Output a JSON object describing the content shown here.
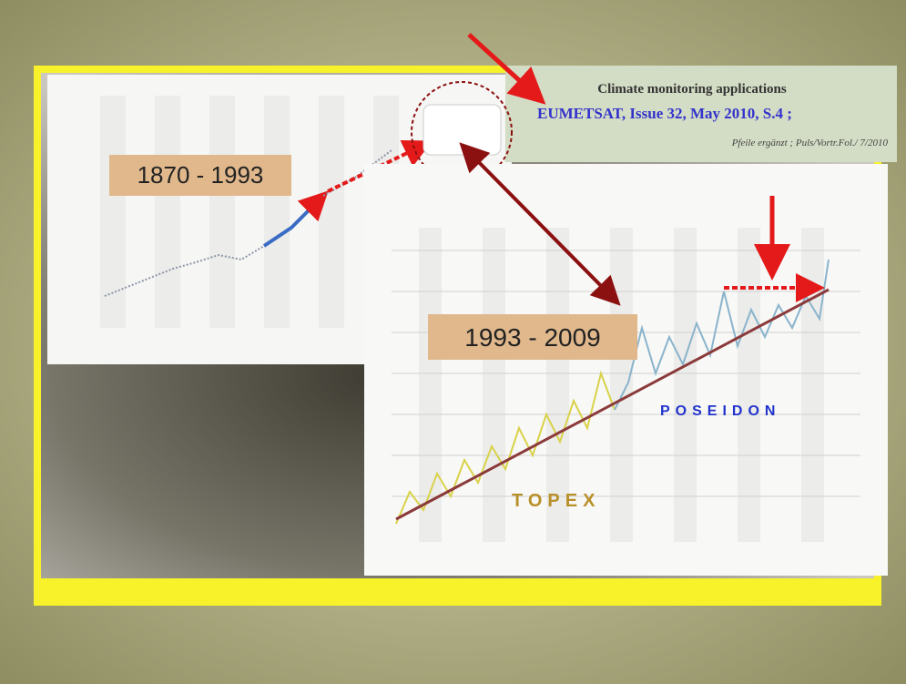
{
  "header": {
    "title": "Climate monitoring applications",
    "source": "EUMETSAT, Issue 32, May 2010, S.4 ;",
    "note": "Pfeile ergänzt ; Puls/Vortr.Fol./ 7/2010"
  },
  "left_chart": {
    "period": "1870 - 1993"
  },
  "right_chart": {
    "period": "1993 - 2009",
    "labels": [
      "POSEIDON",
      "TOPEX"
    ]
  }
}
